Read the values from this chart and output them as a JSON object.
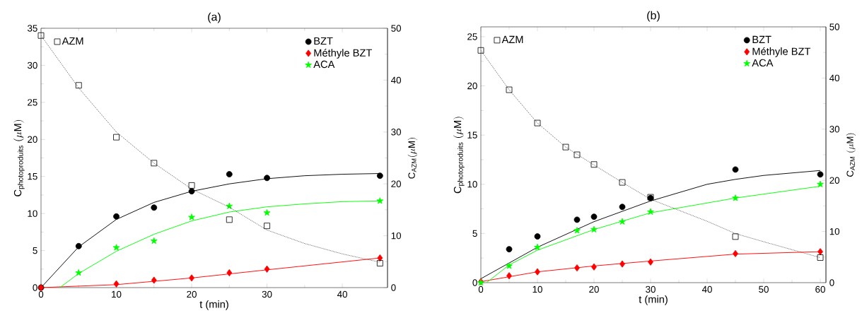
{
  "chart_data": [
    {
      "type": "scatter",
      "title": "(a)",
      "xlabel": "t (min)",
      "ylabel": "\\mathrm{C}_{\\mathrm{photoproduits}}\\ (\\mu\\mathrm{M})",
      "y2label": "\\mathrm{C}_{\\mathrm{AZM}}(\\mu\\mathrm{M})",
      "xlim": [
        0,
        46
      ],
      "xticks": [
        0,
        10,
        20,
        30,
        40
      ],
      "ylim": [
        0,
        35
      ],
      "yticks": [
        0,
        5,
        10,
        15,
        20,
        25,
        30,
        35
      ],
      "y2lim": [
        0,
        50
      ],
      "y2ticks": [
        0,
        10,
        20,
        30,
        40,
        50
      ],
      "legend": "top right",
      "series": [
        {
          "name": "AZM",
          "color": "#000000",
          "marker": "square",
          "axis": "y2",
          "x": [
            0,
            5,
            10,
            15,
            20,
            25,
            30,
            45
          ],
          "values": [
            48.6,
            39,
            29,
            24,
            19.7,
            13.1,
            11.9,
            4.7
          ]
        },
        {
          "name": "BZT",
          "color": "#000000",
          "marker": "circle",
          "x": [
            0,
            5,
            10,
            15,
            20,
            25,
            30,
            45
          ],
          "values": [
            0,
            5.6,
            9.6,
            10.8,
            13.0,
            15.3,
            14.8,
            15.1
          ]
        },
        {
          "name": "Méthyle BZT",
          "color": "#ff0000",
          "marker": "diamond",
          "x": [
            0,
            10,
            15,
            20,
            25,
            30,
            45
          ],
          "values": [
            0,
            0.5,
            1.0,
            1.3,
            2.0,
            2.5,
            4.0
          ]
        },
        {
          "name": "ACA",
          "color": "#00ff00",
          "marker": "star",
          "x": [
            5,
            10,
            15,
            20,
            25,
            30,
            45
          ],
          "values": [
            2.0,
            5.4,
            6.3,
            9.5,
            11.0,
            10.1,
            11.7
          ]
        },
        {
          "type": "line",
          "color": "#000000",
          "axis": "y2",
          "line_style": "dotted",
          "x": [
            0,
            5,
            10,
            15,
            20,
            25,
            30,
            35,
            40,
            45
          ],
          "values": [
            48.6,
            38.5,
            30,
            24,
            19,
            15.5,
            11.1,
            8.5,
            6.5,
            4.9
          ]
        },
        {
          "type": "line",
          "color": "#000000",
          "x": [
            0,
            5,
            10,
            15,
            20,
            25,
            30,
            35,
            40,
            45
          ],
          "values": [
            0,
            5.5,
            9.2,
            11.5,
            13.0,
            14.0,
            14.7,
            15.1,
            15.3,
            15.4
          ]
        },
        {
          "type": "line",
          "color": "#ff0000",
          "x": [
            0,
            10,
            20,
            30,
            45
          ],
          "values": [
            0,
            0.4,
            1.3,
            2.4,
            4.0
          ]
        },
        {
          "type": "line",
          "color": "#00ff00",
          "x": [
            2.5,
            5,
            10,
            15,
            20,
            25,
            30,
            35,
            40,
            45
          ],
          "values": [
            0,
            1.9,
            4.9,
            7.2,
            9.0,
            10.2,
            10.9,
            11.3,
            11.6,
            11.7
          ]
        }
      ]
    },
    {
      "type": "scatter",
      "title": "(b)",
      "xlabel": "t (min)",
      "ylabel": "\\mathrm{C}_{\\mathrm{photoproduits}}\\ (\\mu\\mathrm{M})",
      "y2label": "\\mathrm{C}_{\\mathrm{AZM}}\\ (\\mu\\mathrm{M})",
      "xlim": [
        0,
        61
      ],
      "xticks": [
        0,
        10,
        20,
        30,
        40,
        50,
        60
      ],
      "ylim": [
        0,
        26
      ],
      "yticks": [
        0,
        5,
        10,
        15,
        20,
        25
      ],
      "y2lim": [
        0,
        50
      ],
      "y2ticks": [
        0,
        10,
        20,
        30,
        40,
        50
      ],
      "legend": "top right",
      "series": [
        {
          "name": "AZM",
          "color": "#000000",
          "marker": "square",
          "axis": "y2",
          "x": [
            0,
            5,
            10,
            15,
            17,
            20,
            25,
            30,
            45,
            60
          ],
          "values": [
            45.4,
            37.7,
            31.2,
            26.5,
            25.0,
            23.1,
            19.6,
            16.7,
            9.0,
            4.9
          ]
        },
        {
          "name": "BZT",
          "color": "#000000",
          "marker": "circle",
          "x": [
            5,
            10,
            17,
            20,
            25,
            30,
            45,
            60
          ],
          "values": [
            3.4,
            4.7,
            6.4,
            6.7,
            7.7,
            8.6,
            11.5,
            11.0
          ]
        },
        {
          "name": "Méthyle BZT",
          "color": "#ff0000",
          "marker": "diamond",
          "x": [
            0,
            5,
            10,
            17,
            20,
            25,
            30,
            45,
            60
          ],
          "values": [
            0.1,
            0.7,
            1.1,
            1.5,
            1.6,
            1.9,
            2.1,
            2.95,
            3.15
          ]
        },
        {
          "name": "ACA",
          "color": "#00ff00",
          "marker": "star",
          "x": [
            0,
            5,
            10,
            17,
            20,
            25,
            30,
            45,
            60
          ],
          "values": [
            0,
            1.7,
            3.6,
            5.3,
            5.4,
            6.2,
            7.2,
            8.6,
            10.0
          ]
        },
        {
          "type": "line",
          "color": "#000000",
          "axis": "y2",
          "line_style": "dotted",
          "x": [
            0,
            5,
            10,
            15,
            20,
            25,
            30,
            40,
            45,
            50,
            60
          ],
          "values": [
            45.4,
            37.7,
            31.2,
            26.5,
            23,
            19.6,
            16.3,
            12,
            9.6,
            8,
            4.9
          ]
        },
        {
          "type": "line",
          "color": "#000000",
          "x": [
            0,
            10,
            20,
            30,
            40,
            45,
            50,
            60
          ],
          "values": [
            0.4,
            3.6,
            6.2,
            8.3,
            10.0,
            10.5,
            10.9,
            11.4
          ]
        },
        {
          "type": "line",
          "color": "#ff0000",
          "x": [
            0,
            10,
            20,
            30,
            45,
            60
          ],
          "values": [
            0.1,
            1.1,
            1.7,
            2.2,
            2.9,
            3.15
          ]
        },
        {
          "type": "line",
          "color": "#00ff00",
          "x": [
            1,
            5,
            10,
            20,
            30,
            45,
            60
          ],
          "values": [
            0,
            1.8,
            3.3,
            5.4,
            7.1,
            8.6,
            9.8
          ]
        }
      ]
    }
  ]
}
